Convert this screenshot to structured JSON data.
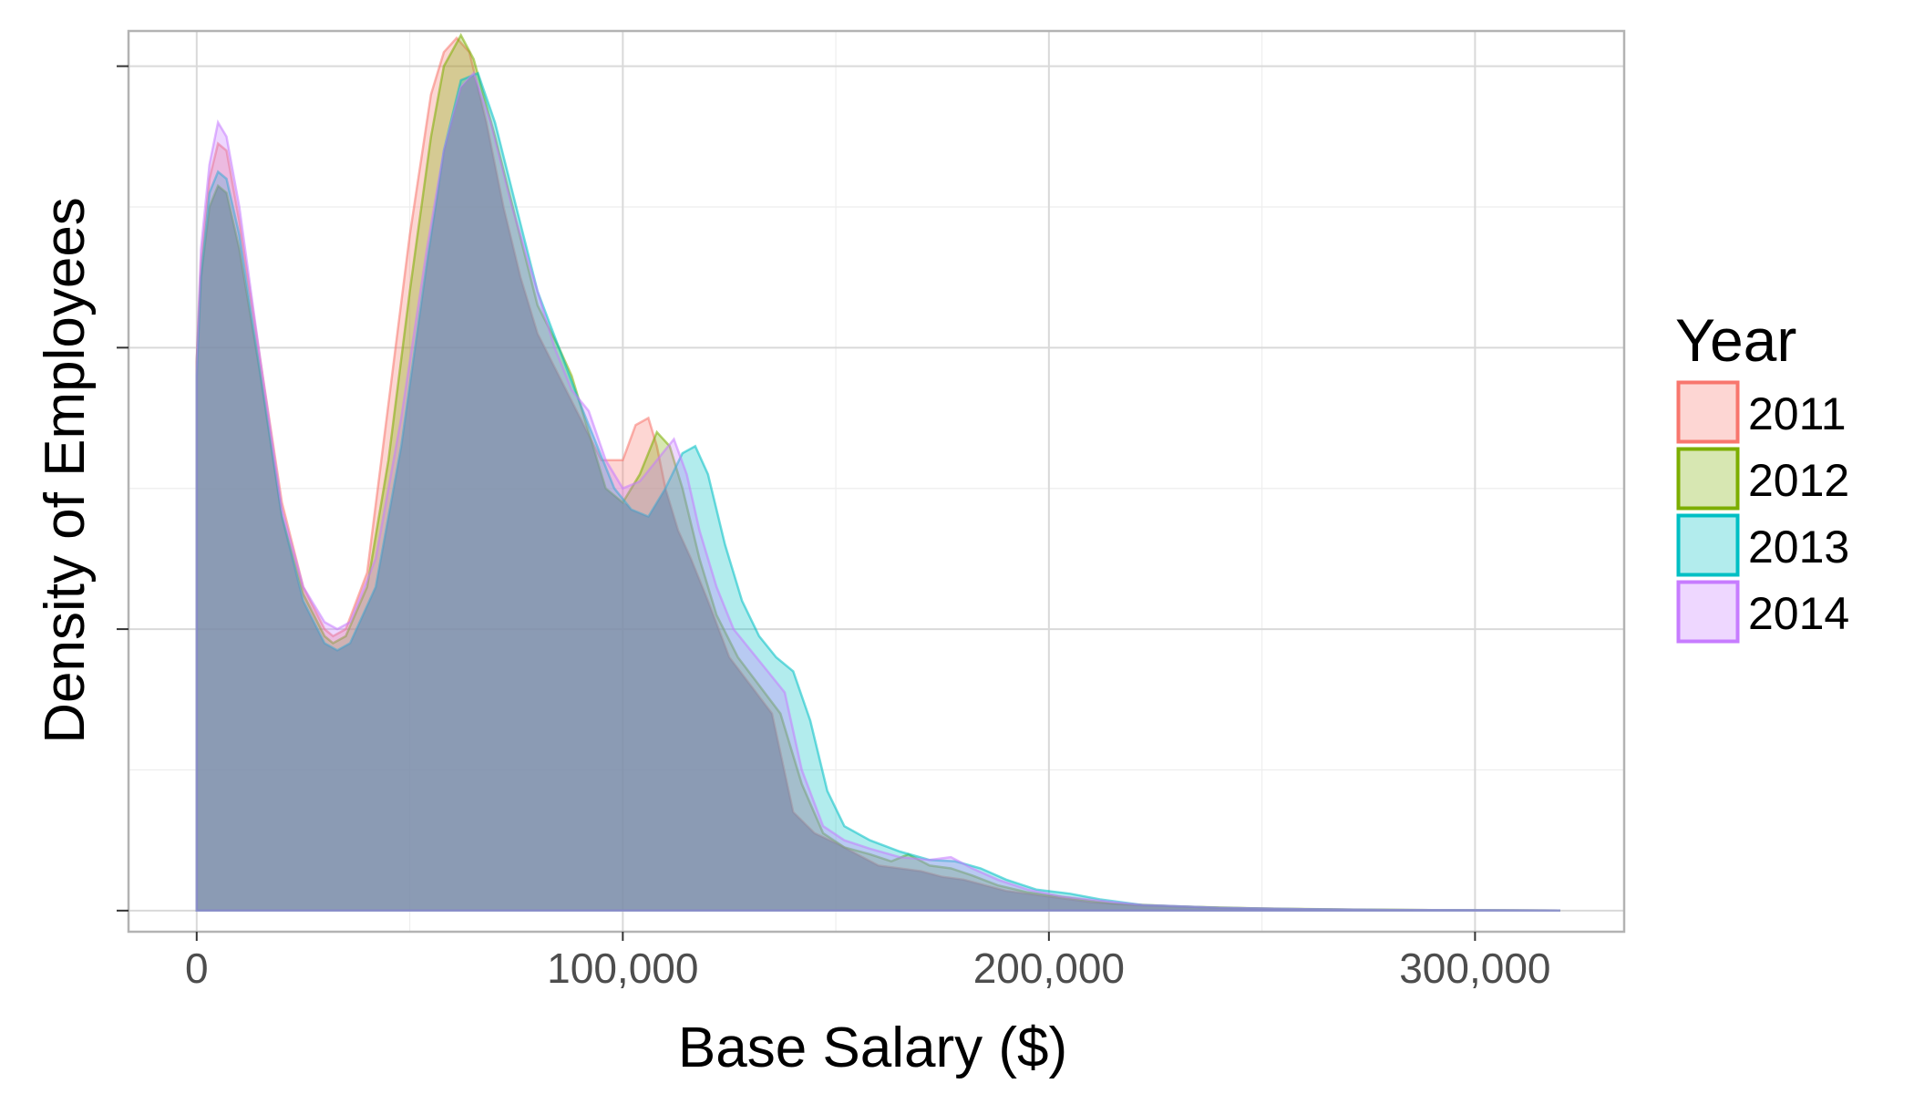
{
  "chart_data": {
    "type": "area",
    "chart_subtype": "density",
    "xlabel": "Base Salary ($)",
    "ylabel": "Density of Employees",
    "xlim": [
      -16000,
      335000
    ],
    "ylim": [
      -0.15,
      6.25
    ],
    "x_ticks": [
      0,
      100000,
      200000,
      300000
    ],
    "x_tick_labels": [
      "0",
      "100,000",
      "200,000",
      "300,000"
    ],
    "y_ticks": [
      0,
      2,
      4,
      6
    ],
    "y_tick_labels": [
      "",
      "",
      "",
      ""
    ],
    "grid": true,
    "legend": {
      "title": "Year",
      "position": "right"
    },
    "series": [
      {
        "name": "2011",
        "color": "#F8766D",
        "points": [
          [
            0,
            0
          ],
          [
            0,
            3.9
          ],
          [
            1000,
            4.6
          ],
          [
            3000,
            5.2
          ],
          [
            5000,
            5.45
          ],
          [
            7000,
            5.4
          ],
          [
            10000,
            4.9
          ],
          [
            15000,
            3.9
          ],
          [
            20000,
            2.9
          ],
          [
            25000,
            2.3
          ],
          [
            30000,
            2.0
          ],
          [
            32000,
            1.95
          ],
          [
            35000,
            2.0
          ],
          [
            40000,
            2.4
          ],
          [
            45000,
            3.6
          ],
          [
            50000,
            4.8
          ],
          [
            55000,
            5.8
          ],
          [
            58000,
            6.1
          ],
          [
            61000,
            6.2
          ],
          [
            64000,
            6.1
          ],
          [
            68000,
            5.6
          ],
          [
            72000,
            5.0
          ],
          [
            76000,
            4.5
          ],
          [
            80000,
            4.1
          ],
          [
            85000,
            3.8
          ],
          [
            90000,
            3.5
          ],
          [
            95000,
            3.2
          ],
          [
            100000,
            3.2
          ],
          [
            103000,
            3.45
          ],
          [
            106000,
            3.5
          ],
          [
            108000,
            3.3
          ],
          [
            110000,
            3.0
          ],
          [
            113000,
            2.7
          ],
          [
            116000,
            2.5
          ],
          [
            120000,
            2.2
          ],
          [
            125000,
            1.8
          ],
          [
            130000,
            1.6
          ],
          [
            135000,
            1.4
          ],
          [
            140000,
            0.7
          ],
          [
            145000,
            0.55
          ],
          [
            150000,
            0.48
          ],
          [
            155000,
            0.4
          ],
          [
            160000,
            0.32
          ],
          [
            165000,
            0.3
          ],
          [
            170000,
            0.28
          ],
          [
            175000,
            0.24
          ],
          [
            180000,
            0.22
          ],
          [
            185000,
            0.18
          ],
          [
            190000,
            0.14
          ],
          [
            200000,
            0.1
          ],
          [
            210000,
            0.06
          ],
          [
            220000,
            0.04
          ],
          [
            240000,
            0.02
          ],
          [
            260000,
            0.01
          ],
          [
            280000,
            0.005
          ],
          [
            300000,
            0.003
          ],
          [
            320000,
            0.0
          ]
        ]
      },
      {
        "name": "2012",
        "color": "#7CAE00",
        "points": [
          [
            0,
            0
          ],
          [
            0,
            3.9
          ],
          [
            1000,
            4.5
          ],
          [
            3000,
            5.0
          ],
          [
            5000,
            5.15
          ],
          [
            7000,
            5.1
          ],
          [
            10000,
            4.7
          ],
          [
            15000,
            3.8
          ],
          [
            20000,
            2.8
          ],
          [
            25000,
            2.25
          ],
          [
            30000,
            1.95
          ],
          [
            32000,
            1.9
          ],
          [
            35000,
            1.95
          ],
          [
            40000,
            2.3
          ],
          [
            45000,
            3.2
          ],
          [
            50000,
            4.4
          ],
          [
            55000,
            5.5
          ],
          [
            58000,
            6.0
          ],
          [
            62000,
            6.22
          ],
          [
            65000,
            6.05
          ],
          [
            70000,
            5.5
          ],
          [
            75000,
            4.9
          ],
          [
            80000,
            4.3
          ],
          [
            85000,
            4.0
          ],
          [
            88000,
            3.8
          ],
          [
            92000,
            3.4
          ],
          [
            96000,
            3.0
          ],
          [
            100000,
            2.9
          ],
          [
            104000,
            3.1
          ],
          [
            108000,
            3.4
          ],
          [
            111000,
            3.3
          ],
          [
            114000,
            3.0
          ],
          [
            118000,
            2.5
          ],
          [
            122000,
            2.1
          ],
          [
            127000,
            1.8
          ],
          [
            132000,
            1.6
          ],
          [
            137000,
            1.4
          ],
          [
            142000,
            0.9
          ],
          [
            147000,
            0.55
          ],
          [
            152000,
            0.45
          ],
          [
            158000,
            0.4
          ],
          [
            163000,
            0.35
          ],
          [
            167000,
            0.4
          ],
          [
            172000,
            0.32
          ],
          [
            177000,
            0.3
          ],
          [
            182000,
            0.25
          ],
          [
            188000,
            0.18
          ],
          [
            195000,
            0.13
          ],
          [
            205000,
            0.09
          ],
          [
            215000,
            0.05
          ],
          [
            230000,
            0.03
          ],
          [
            250000,
            0.015
          ],
          [
            270000,
            0.008
          ],
          [
            290000,
            0.004
          ],
          [
            320000,
            0.0
          ]
        ]
      },
      {
        "name": "2013",
        "color": "#00BFC4",
        "points": [
          [
            0,
            0
          ],
          [
            0,
            3.8
          ],
          [
            1000,
            4.5
          ],
          [
            3000,
            5.1
          ],
          [
            5000,
            5.25
          ],
          [
            7000,
            5.2
          ],
          [
            10000,
            4.8
          ],
          [
            15000,
            3.8
          ],
          [
            20000,
            2.8
          ],
          [
            25000,
            2.2
          ],
          [
            30000,
            1.9
          ],
          [
            33000,
            1.85
          ],
          [
            36000,
            1.9
          ],
          [
            42000,
            2.3
          ],
          [
            48000,
            3.3
          ],
          [
            54000,
            4.6
          ],
          [
            58000,
            5.4
          ],
          [
            62000,
            5.9
          ],
          [
            66000,
            5.95
          ],
          [
            70000,
            5.6
          ],
          [
            75000,
            5.0
          ],
          [
            80000,
            4.4
          ],
          [
            85000,
            4.0
          ],
          [
            90000,
            3.6
          ],
          [
            94000,
            3.3
          ],
          [
            98000,
            3.0
          ],
          [
            102000,
            2.85
          ],
          [
            106000,
            2.8
          ],
          [
            110000,
            3.0
          ],
          [
            114000,
            3.25
          ],
          [
            117000,
            3.3
          ],
          [
            120000,
            3.1
          ],
          [
            124000,
            2.6
          ],
          [
            128000,
            2.2
          ],
          [
            132000,
            1.95
          ],
          [
            136000,
            1.8
          ],
          [
            140000,
            1.7
          ],
          [
            144000,
            1.35
          ],
          [
            148000,
            0.85
          ],
          [
            152000,
            0.6
          ],
          [
            158000,
            0.5
          ],
          [
            165000,
            0.42
          ],
          [
            172000,
            0.36
          ],
          [
            178000,
            0.35
          ],
          [
            184000,
            0.3
          ],
          [
            190000,
            0.22
          ],
          [
            197000,
            0.15
          ],
          [
            205000,
            0.12
          ],
          [
            212000,
            0.08
          ],
          [
            222000,
            0.04
          ],
          [
            240000,
            0.02
          ],
          [
            260000,
            0.01
          ],
          [
            280000,
            0.005
          ],
          [
            300000,
            0.003
          ],
          [
            320000,
            0.0
          ]
        ]
      },
      {
        "name": "2014",
        "color": "#C77CFF",
        "points": [
          [
            0,
            0
          ],
          [
            0,
            3.9
          ],
          [
            1000,
            4.7
          ],
          [
            3000,
            5.3
          ],
          [
            5000,
            5.6
          ],
          [
            7000,
            5.5
          ],
          [
            10000,
            5.0
          ],
          [
            15000,
            3.9
          ],
          [
            20000,
            2.85
          ],
          [
            25000,
            2.3
          ],
          [
            30000,
            2.05
          ],
          [
            33000,
            2.0
          ],
          [
            36000,
            2.05
          ],
          [
            42000,
            2.5
          ],
          [
            48000,
            3.5
          ],
          [
            54000,
            4.7
          ],
          [
            58000,
            5.4
          ],
          [
            62000,
            5.85
          ],
          [
            65000,
            5.95
          ],
          [
            69000,
            5.6
          ],
          [
            74000,
            5.0
          ],
          [
            79000,
            4.5
          ],
          [
            84000,
            4.0
          ],
          [
            88000,
            3.7
          ],
          [
            92000,
            3.55
          ],
          [
            96000,
            3.2
          ],
          [
            100000,
            3.0
          ],
          [
            104000,
            3.05
          ],
          [
            108000,
            3.2
          ],
          [
            112000,
            3.35
          ],
          [
            115000,
            3.1
          ],
          [
            118000,
            2.7
          ],
          [
            122000,
            2.3
          ],
          [
            126000,
            2.0
          ],
          [
            130000,
            1.85
          ],
          [
            134000,
            1.7
          ],
          [
            138000,
            1.55
          ],
          [
            142000,
            1.0
          ],
          [
            147000,
            0.6
          ],
          [
            152000,
            0.5
          ],
          [
            158000,
            0.44
          ],
          [
            165000,
            0.38
          ],
          [
            172000,
            0.36
          ],
          [
            177000,
            0.38
          ],
          [
            182000,
            0.3
          ],
          [
            188000,
            0.22
          ],
          [
            195000,
            0.15
          ],
          [
            203000,
            0.1
          ],
          [
            212000,
            0.07
          ],
          [
            222000,
            0.04
          ],
          [
            240000,
            0.02
          ],
          [
            260000,
            0.01
          ],
          [
            280000,
            0.005
          ],
          [
            300000,
            0.003
          ],
          [
            320000,
            0.0
          ]
        ]
      }
    ]
  },
  "colors": {
    "panel_border": "#b3b3b3",
    "grid_major": "#d9d9d9",
    "grid_minor": "#eeeeee",
    "overlap_tint": "#6e82a8"
  }
}
